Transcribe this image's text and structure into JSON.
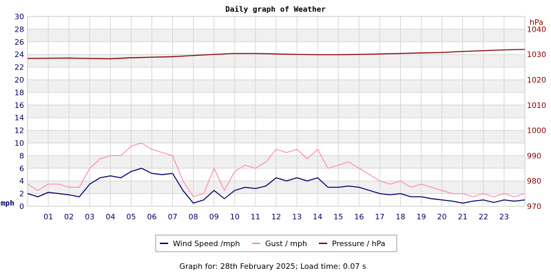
{
  "chart_data": {
    "type": "line",
    "title": "Daily graph of Weather",
    "footer": "Graph for: 28th February 2025; Load time: 0.07 s",
    "left_axis": {
      "unit": "mph",
      "range": [
        0,
        30
      ],
      "ticks": [
        "0",
        "2",
        "4",
        "6",
        "8",
        "10",
        "12",
        "14",
        "16",
        "18",
        "20",
        "22",
        "24",
        "26",
        "28",
        "30"
      ]
    },
    "right_axis": {
      "unit": "hPa",
      "range": [
        970,
        1045
      ],
      "ticks": [
        "970",
        "980",
        "990",
        "1000",
        "1010",
        "1020",
        "1030",
        "1040"
      ]
    },
    "x_axis": {
      "range": [
        0,
        24
      ],
      "ticks": [
        "01",
        "02",
        "03",
        "04",
        "05",
        "06",
        "07",
        "08",
        "09",
        "10",
        "11",
        "12",
        "13",
        "14",
        "15",
        "16",
        "17",
        "18",
        "19",
        "20",
        "21",
        "22",
        "23"
      ]
    },
    "grid": true,
    "legend_position": "bottom",
    "series": [
      {
        "name": "Wind Speed /mph",
        "color": "#000066",
        "axis": "left",
        "x": [
          0,
          0.5,
          1,
          1.5,
          2,
          2.5,
          3,
          3.5,
          4,
          4.5,
          5,
          5.5,
          6,
          6.5,
          7,
          7.5,
          8,
          8.5,
          9,
          9.5,
          10,
          10.5,
          11,
          11.5,
          12,
          12.5,
          13,
          13.5,
          14,
          14.5,
          15,
          15.5,
          16,
          16.5,
          17,
          17.5,
          18,
          18.5,
          19,
          19.5,
          20,
          20.5,
          21,
          21.5,
          22,
          22.5,
          23,
          23.5,
          24
        ],
        "values": [
          2.0,
          1.5,
          2.2,
          2.0,
          1.8,
          1.5,
          3.5,
          4.5,
          4.8,
          4.5,
          5.5,
          6.0,
          5.2,
          5.0,
          5.2,
          2.5,
          0.5,
          1.0,
          2.5,
          1.2,
          2.5,
          3.0,
          2.8,
          3.2,
          4.5,
          4.0,
          4.5,
          4.0,
          4.5,
          3.0,
          3.0,
          3.2,
          3.0,
          2.5,
          2.0,
          1.8,
          2.0,
          1.5,
          1.5,
          1.2,
          1.0,
          0.8,
          0.5,
          0.8,
          1.0,
          0.6,
          1.0,
          0.8,
          1.0
        ]
      },
      {
        "name": "Gust / mph",
        "color": "#ff88aa",
        "axis": "left",
        "x": [
          0,
          0.5,
          1,
          1.5,
          2,
          2.5,
          3,
          3.5,
          4,
          4.5,
          5,
          5.5,
          6,
          6.5,
          7,
          7.5,
          8,
          8.5,
          9,
          9.5,
          10,
          10.5,
          11,
          11.5,
          12,
          12.5,
          13,
          13.5,
          14,
          14.5,
          15,
          15.5,
          16,
          16.5,
          17,
          17.5,
          18,
          18.5,
          19,
          19.5,
          20,
          20.5,
          21,
          21.5,
          22,
          22.5,
          23,
          23.5,
          24
        ],
        "values": [
          3.5,
          2.5,
          3.5,
          3.5,
          3.0,
          3.0,
          6.0,
          7.5,
          8.0,
          8.0,
          9.5,
          10.0,
          9.0,
          8.5,
          8.0,
          4.0,
          1.5,
          2.0,
          6.0,
          2.5,
          5.5,
          6.5,
          6.0,
          7.0,
          9.0,
          8.5,
          9.0,
          7.5,
          9.0,
          6.0,
          6.5,
          7.0,
          6.0,
          5.0,
          4.0,
          3.5,
          4.0,
          3.0,
          3.5,
          3.0,
          2.5,
          2.0,
          2.0,
          1.5,
          2.0,
          1.5,
          2.0,
          1.5,
          2.0
        ]
      },
      {
        "name": "Pressure / hPa",
        "color": "#880000",
        "axis": "right",
        "x": [
          0,
          1,
          2,
          3,
          4,
          5,
          6,
          7,
          8,
          9,
          10,
          11,
          12,
          13,
          14,
          15,
          16,
          17,
          18,
          19,
          20,
          21,
          22,
          23,
          24
        ],
        "values": [
          1028.4,
          1028.5,
          1028.6,
          1028.4,
          1028.3,
          1028.7,
          1028.9,
          1029.1,
          1029.6,
          1030.0,
          1030.4,
          1030.4,
          1030.2,
          1030.0,
          1029.9,
          1029.9,
          1030.0,
          1030.2,
          1030.4,
          1030.6,
          1030.8,
          1031.2,
          1031.5,
          1031.8,
          1032.0
        ]
      }
    ]
  }
}
